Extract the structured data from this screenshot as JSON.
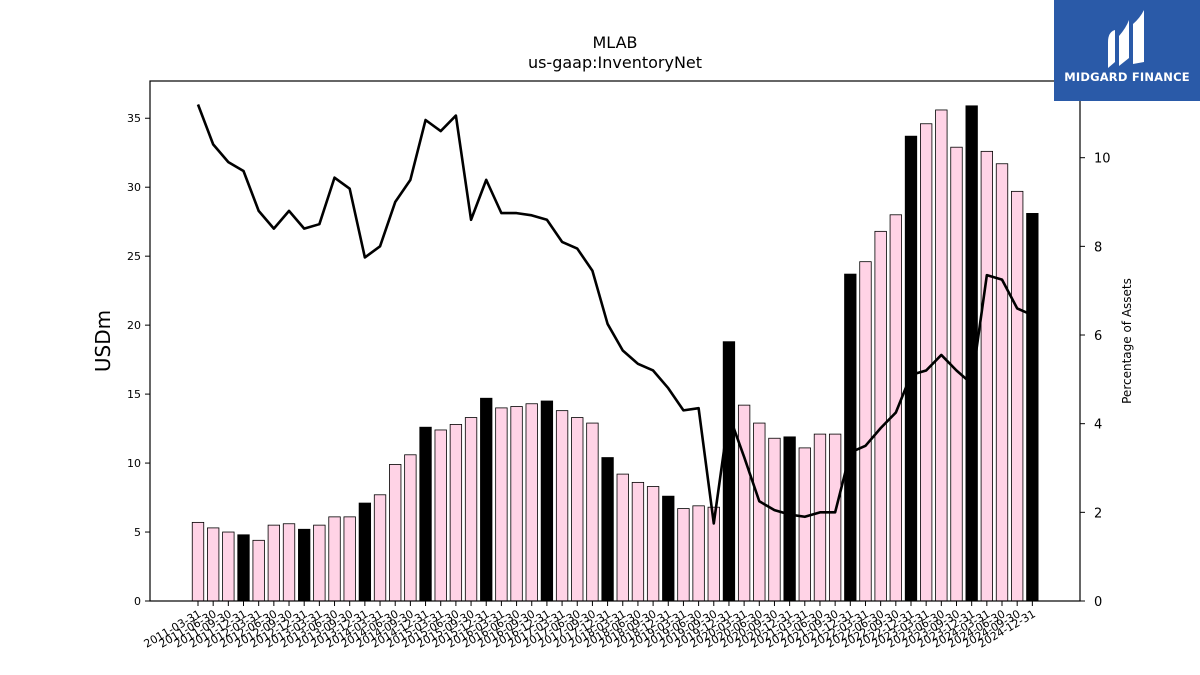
{
  "logo": {
    "text": "MIDGARD FINANCE",
    "icon": "midgard-logo-icon"
  },
  "colors": {
    "bar_regular": "#ffd3e6",
    "bar_year_end": "#000000",
    "line": "#000000",
    "logo_bg": "#2a5aa8"
  },
  "chart_data": {
    "type": "bar",
    "title": "MLAB",
    "subtitle": "us-gaap:InventoryNet",
    "ylabel": "USDm",
    "y2label": "Percentage of Assets",
    "ylim": [
      0,
      37.7
    ],
    "y2lim": [
      0,
      11.73
    ],
    "yticks": [
      0,
      5,
      10,
      15,
      20,
      25,
      30,
      35
    ],
    "y2ticks": [
      0,
      2,
      4,
      6,
      8,
      10
    ],
    "grid": false,
    "categories": [
      "2011-03-31",
      "2011-06-30",
      "2011-09-30",
      "2011-12-31",
      "2012-03-31",
      "2012-06-30",
      "2012-09-30",
      "2012-12-31",
      "2013-03-31",
      "2013-06-30",
      "2013-09-30",
      "2013-12-31",
      "2014-03-31",
      "2014-06-30",
      "2014-09-30",
      "2014-12-31",
      "2015-03-31",
      "2015-06-30",
      "2015-09-30",
      "2015-12-31",
      "2016-03-31",
      "2016-06-30",
      "2016-09-30",
      "2016-12-31",
      "2017-03-31",
      "2017-06-30",
      "2017-09-30",
      "2017-12-31",
      "2018-03-31",
      "2018-06-30",
      "2018-09-30",
      "2018-12-31",
      "2019-03-31",
      "2019-06-30",
      "2019-09-30",
      "2019-12-31",
      "2020-03-31",
      "2020-06-30",
      "2020-09-30",
      "2020-12-31",
      "2021-03-31",
      "2021-06-30",
      "2021-09-30",
      "2021-12-31",
      "2022-03-31",
      "2022-06-30",
      "2022-09-30",
      "2022-12-31",
      "2023-03-31",
      "2023-06-30",
      "2023-09-30",
      "2023-12-31",
      "2024-03-31",
      "2024-06-30",
      "2024-09-30",
      "2024-12-31"
    ],
    "series": [
      {
        "type": "bar",
        "axis": "left",
        "values": [
          5.7,
          5.3,
          5.0,
          4.8,
          4.4,
          5.5,
          5.6,
          5.2,
          5.5,
          6.1,
          6.1,
          7.1,
          7.7,
          9.9,
          10.6,
          12.6,
          12.4,
          12.8,
          13.3,
          14.7,
          14.0,
          14.1,
          14.3,
          14.5,
          13.8,
          13.3,
          12.9,
          10.4,
          9.2,
          8.6,
          8.3,
          7.6,
          6.7,
          6.9,
          6.8,
          18.8,
          14.2,
          12.9,
          11.8,
          11.9,
          11.1,
          12.1,
          12.1,
          23.7,
          24.6,
          26.8,
          28.0,
          33.7,
          34.6,
          35.6,
          32.9,
          35.9,
          32.6,
          31.7,
          29.7,
          28.1
        ],
        "year_end": [
          false,
          false,
          false,
          true,
          false,
          false,
          false,
          true,
          false,
          false,
          false,
          true,
          false,
          false,
          false,
          true,
          false,
          false,
          false,
          true,
          false,
          false,
          false,
          true,
          false,
          false,
          false,
          true,
          false,
          false,
          false,
          true,
          false,
          false,
          false,
          true,
          false,
          false,
          false,
          true,
          false,
          false,
          false,
          true,
          false,
          false,
          false,
          true,
          false,
          false,
          false,
          true,
          false,
          false,
          false,
          true
        ]
      },
      {
        "type": "line",
        "axis": "right",
        "values": [
          11.2,
          10.3,
          9.9,
          9.7,
          8.8,
          8.4,
          8.8,
          8.4,
          8.5,
          9.55,
          9.3,
          7.75,
          8.0,
          9.0,
          9.5,
          10.85,
          10.6,
          10.95,
          8.6,
          9.5,
          8.75,
          8.75,
          8.7,
          8.6,
          8.1,
          7.95,
          7.45,
          6.25,
          5.65,
          5.35,
          5.2,
          4.8,
          4.3,
          4.35,
          1.75,
          4.2,
          3.25,
          2.25,
          2.05,
          1.95,
          1.9,
          2.0,
          2.0,
          3.35,
          3.5,
          3.9,
          4.25,
          5.1,
          5.2,
          5.55,
          5.2,
          4.9,
          7.35,
          7.25,
          6.6,
          6.45
        ]
      }
    ]
  }
}
